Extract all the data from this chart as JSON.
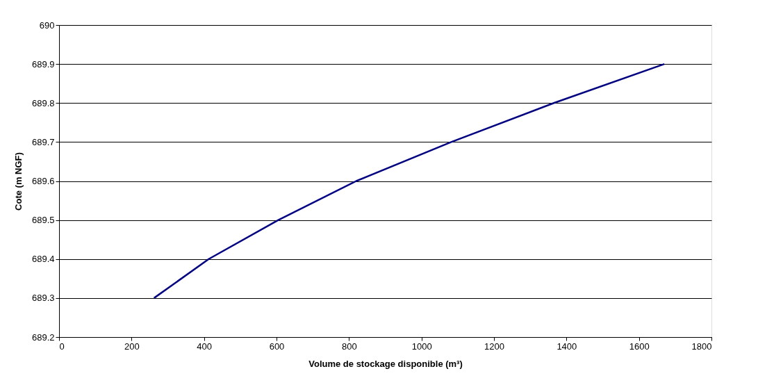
{
  "chart_data": {
    "type": "line",
    "xlabel": "Volume de stockage disponible (m³)",
    "ylabel": "Cote (m NGF)",
    "x": [
      262,
      413,
      605,
      820,
      1082,
      1365,
      1670
    ],
    "series": [
      {
        "color": "#000080",
        "values": [
          689.3,
          689.4,
          689.5,
          689.6,
          689.7,
          689.8,
          689.9
        ]
      }
    ],
    "xlim": [
      0,
      1800
    ],
    "xticks": [
      0,
      200,
      400,
      600,
      800,
      1000,
      1200,
      1400,
      1600,
      1800
    ],
    "ylim": [
      689.2,
      690
    ],
    "yticks": [
      689.2,
      689.3,
      689.4,
      689.5,
      689.6,
      689.7,
      689.8,
      689.9,
      690
    ],
    "grid": "y",
    "marker": "none",
    "line_style": "solid"
  }
}
